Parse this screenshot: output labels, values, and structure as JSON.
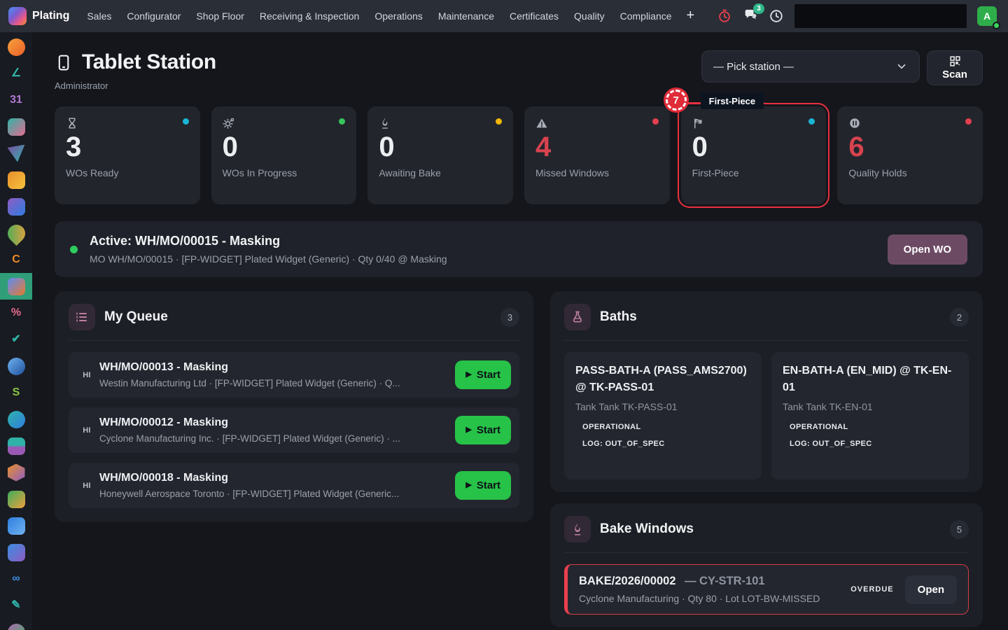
{
  "nav": {
    "brand": "Plating",
    "items": [
      "Sales",
      "Configurator",
      "Shop Floor",
      "Receiving & Inspection",
      "Operations",
      "Maintenance",
      "Certificates",
      "Quality",
      "Compliance"
    ],
    "plus_label": "+",
    "messages_badge": "3",
    "avatar_initial": "A"
  },
  "sidebar": {
    "apps": [
      {
        "name": "discuss-bubble-icon",
        "shape": "round",
        "c1": "#f6a13c",
        "c2": "#ec5f2a"
      },
      {
        "name": "pencil-line-icon",
        "shape": "glyph",
        "glyph": "∠",
        "fg": "#2fb3a8"
      },
      {
        "name": "calendar-31-icon",
        "shape": "glyph",
        "glyph": "31",
        "fg": "#b07ad4"
      },
      {
        "name": "contact-card-icon",
        "shape": "square",
        "c1": "#2fb3a8",
        "c2": "#e56a8f"
      },
      {
        "name": "send-arrow-icon",
        "shape": "tri",
        "c1": "#7a4fa3",
        "c2": "#2fb3a8"
      },
      {
        "name": "bar-chart-icon",
        "shape": "square",
        "c1": "#e8902c",
        "c2": "#f5c23c"
      },
      {
        "name": "app-grid-icon",
        "shape": "square",
        "c1": "#8e5cc4",
        "c2": "#2f7de0"
      },
      {
        "name": "map-pin-icon",
        "shape": "pin",
        "c1": "#3cae5c",
        "c2": "#f0a03c"
      },
      {
        "name": "letter-c-icon",
        "shape": "glyph",
        "glyph": "C",
        "fg": "#f08c28"
      },
      {
        "name": "plating-app-icon",
        "shape": "square",
        "c1": "#5b8df5",
        "c2": "#e8792f",
        "active": true
      },
      {
        "name": "percent-icon",
        "shape": "glyph",
        "glyph": "%",
        "fg": "#e56a8f"
      },
      {
        "name": "double-check-icon",
        "shape": "glyph",
        "glyph": "✔",
        "fg": "#2fb3a8"
      },
      {
        "name": "clock-app-icon",
        "shape": "round",
        "c1": "#6fb3f0",
        "c2": "#1f4f9e"
      },
      {
        "name": "letter-s-icon",
        "shape": "glyph",
        "glyph": "S",
        "fg": "#8cc63f"
      },
      {
        "name": "globe-icon",
        "shape": "round",
        "c1": "#2fb3a8",
        "c2": "#2f7de0"
      },
      {
        "name": "layers-icon",
        "shape": "stripes",
        "c1": "#2fb3a8",
        "c2": "#9b59b6"
      },
      {
        "name": "hexagon-icon",
        "shape": "hex",
        "c1": "#e8902c",
        "c2": "#8e5cc4"
      },
      {
        "name": "ramp-chart-icon",
        "shape": "square",
        "c1": "#3cae5c",
        "c2": "#f0a03c"
      },
      {
        "name": "presentation-icon",
        "shape": "square",
        "c1": "#2f7de0",
        "c2": "#6fb3f0"
      },
      {
        "name": "zoom-shapes-icon",
        "shape": "square",
        "c1": "#3a8de0",
        "c2": "#8e5cc4"
      },
      {
        "name": "chain-links-icon",
        "shape": "glyph",
        "glyph": "∞",
        "fg": "#3a8de0"
      },
      {
        "name": "signature-icon",
        "shape": "glyph",
        "glyph": "✎",
        "fg": "#2fb3a8"
      },
      {
        "name": "dot-app-icon",
        "shape": "round",
        "c1": "#b06ab3",
        "c2": "#3cae5c"
      }
    ]
  },
  "header": {
    "title": "Tablet Station",
    "subtitle": "Administrator",
    "station_select": "— Pick station —",
    "scan_label": "Scan"
  },
  "stats": [
    {
      "icon": "hourglass-icon",
      "dot": "#1ab5d6",
      "value": "3",
      "value_color": "#eceef1",
      "label": "WOs Ready"
    },
    {
      "icon": "gears-icon",
      "dot": "#37c65c",
      "value": "0",
      "value_color": "#eceef1",
      "label": "WOs In Progress"
    },
    {
      "icon": "flame-icon",
      "dot": "#f2b705",
      "value": "0",
      "value_color": "#eceef1",
      "label": "Awaiting Bake"
    },
    {
      "icon": "warning-icon",
      "dot": "#e3404e",
      "value": "4",
      "value_color": "#d7434f",
      "label": "Missed Windows"
    },
    {
      "icon": "flag-icon",
      "dot": "#1ab5d6",
      "value": "0",
      "value_color": "#eceef1",
      "label": "First-Piece",
      "highlighted": true
    },
    {
      "icon": "pause-circle-icon",
      "dot": "#e3404e",
      "value": "6",
      "value_color": "#d7434f",
      "label": "Quality Holds"
    }
  ],
  "annotation": {
    "number": "7",
    "label": "First-Piece"
  },
  "active_banner": {
    "title": "Active: WH/MO/00015 - Masking",
    "subtitle": "MO WH/MO/00015 · [FP-WIDGET] Plated Widget (Generic) · Qty 0/40 @ Masking",
    "button": "Open WO"
  },
  "queue": {
    "title": "My Queue",
    "count": "3",
    "items": [
      {
        "priority": "HI",
        "title": "WH/MO/00013 - Masking",
        "subtitle": "Westin Manufacturing Ltd · [FP-WIDGET] Plated Widget (Generic) · Q...",
        "action": "Start"
      },
      {
        "priority": "HI",
        "title": "WH/MO/00012 - Masking",
        "subtitle": "Cyclone Manufacturing Inc. · [FP-WIDGET] Plated Widget (Generic) · ...",
        "action": "Start"
      },
      {
        "priority": "HI",
        "title": "WH/MO/00018 - Masking",
        "subtitle": "Honeywell Aerospace Toronto · [FP-WIDGET] Plated Widget (Generic...",
        "action": "Start"
      }
    ]
  },
  "baths": {
    "title": "Baths",
    "count": "2",
    "items": [
      {
        "title": "PASS-BATH-A (PASS_AMS2700) @ TK-PASS-01",
        "subtitle": "Tank Tank TK-PASS-01",
        "status": "OPERATIONAL",
        "log": "LOG: OUT_OF_SPEC"
      },
      {
        "title": "EN-BATH-A (EN_MID) @ TK-EN-01",
        "subtitle": "Tank Tank TK-EN-01",
        "status": "OPERATIONAL",
        "log": "LOG: OUT_OF_SPEC"
      }
    ]
  },
  "bake": {
    "title": "Bake Windows",
    "count": "5",
    "items": [
      {
        "code": "BAKE/2026/00002",
        "ref": "— CY-STR-101",
        "subtitle": "Cyclone Manufacturing · Qty 80 · Lot LOT-BW-MISSED",
        "status": "OVERDUE",
        "action": "Open"
      }
    ]
  },
  "colors": {
    "accent_green": "#27c248",
    "accent_purple": "#6d4a64",
    "alert_red": "#e8404c",
    "active_teal": "#2f9e79",
    "avatar_green": "#2fad4a",
    "badge_teal": "#2eb88a",
    "dot_cyan": "#1ab5d6",
    "dot_yellow": "#f2b705"
  }
}
